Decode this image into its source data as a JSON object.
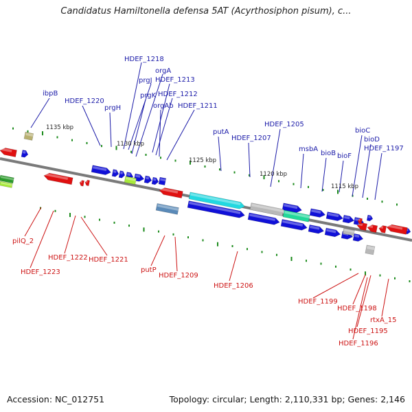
{
  "title": "Candidatus Hamiltonella defensa 5AT (Acyrthosiphon pisum), c...",
  "footer": {
    "accession": "Accession: NC_012751",
    "topology": "Topology: circular; Length: 2,110,331 bp; Genes: 2,146"
  },
  "colors": {
    "top_label": "#1a1aa8",
    "bottom_label": "#cc1111",
    "forward_gene": "#1010d8",
    "reverse_gene": "#e01010",
    "backbone": "#7a7a7a",
    "tick": "#1a8a1a",
    "cyan_feature": "#22d8e0",
    "green_feature": "#22d89a",
    "lime_feature": "#a8ea3a",
    "olive_feature": "#b8b070",
    "grey_feature": "#b8b8b8",
    "steel_feature": "#5a8ab8"
  },
  "scale_labels": [
    "1135 kbp",
    "1130 kbp",
    "1125 kbp",
    "1120 kbp",
    "1115 kbp"
  ],
  "top_labels": [
    "ibpB",
    "HDEF_1220",
    "prgH",
    "HDEF_1218",
    "prgJ",
    "prgK",
    "orgA",
    "HDEF_1213",
    "HDEF_1212",
    "orgAb",
    "HDEF_1211",
    "putA",
    "HDEF_1207",
    "HDEF_1205",
    "msbA",
    "bioB",
    "bioF",
    "bioC",
    "bioD",
    "HDEF_1197"
  ],
  "bottom_labels": [
    "pilQ_2",
    "HDEF_1223",
    "HDEF_1222",
    "HDEF_1221",
    "putP",
    "HDEF_1209",
    "HDEF_1206",
    "HDEF_1199",
    "HDEF_1198",
    "HDEF_1195",
    "rtxA_15",
    "HDEF_1196"
  ]
}
